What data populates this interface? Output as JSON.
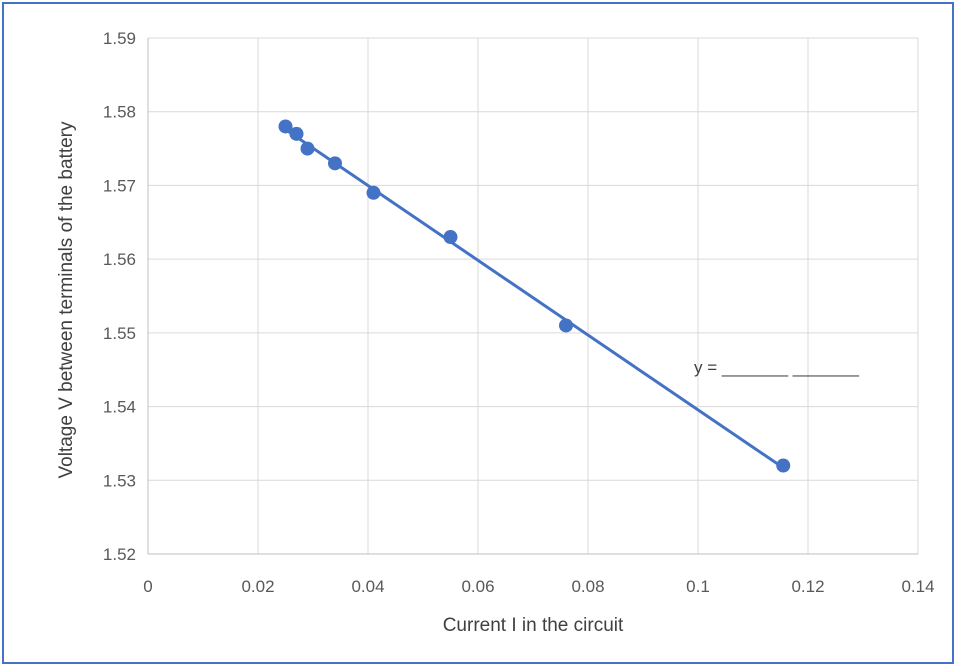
{
  "chart_data": {
    "type": "scatter",
    "title": "",
    "xlabel": "Current I in the circuit",
    "ylabel": "Voltage V between terminals of the battery",
    "xlim": [
      0,
      0.14
    ],
    "ylim": [
      1.52,
      1.59
    ],
    "x_ticks": [
      "0",
      "0.02",
      "0.04",
      "0.06",
      "0.08",
      "0.1",
      "0.12",
      "0.14"
    ],
    "y_ticks": [
      "1.52",
      "1.53",
      "1.54",
      "1.55",
      "1.56",
      "1.57",
      "1.58",
      "1.59"
    ],
    "grid": true,
    "series": [
      {
        "x": [
          0.025,
          0.027,
          0.029,
          0.034,
          0.041,
          0.055,
          0.076,
          0.1155
        ],
        "y": [
          1.578,
          1.577,
          1.575,
          1.573,
          1.569,
          1.563,
          1.551,
          1.532
        ]
      }
    ],
    "trendline": {
      "type": "linear",
      "x_start": 0.025,
      "x_end": 0.1155
    },
    "annotation": "y =  _______ _______",
    "colors": {
      "series": "#4472c4",
      "grid": "#d9d9d9",
      "frame": "#4472c4"
    }
  }
}
